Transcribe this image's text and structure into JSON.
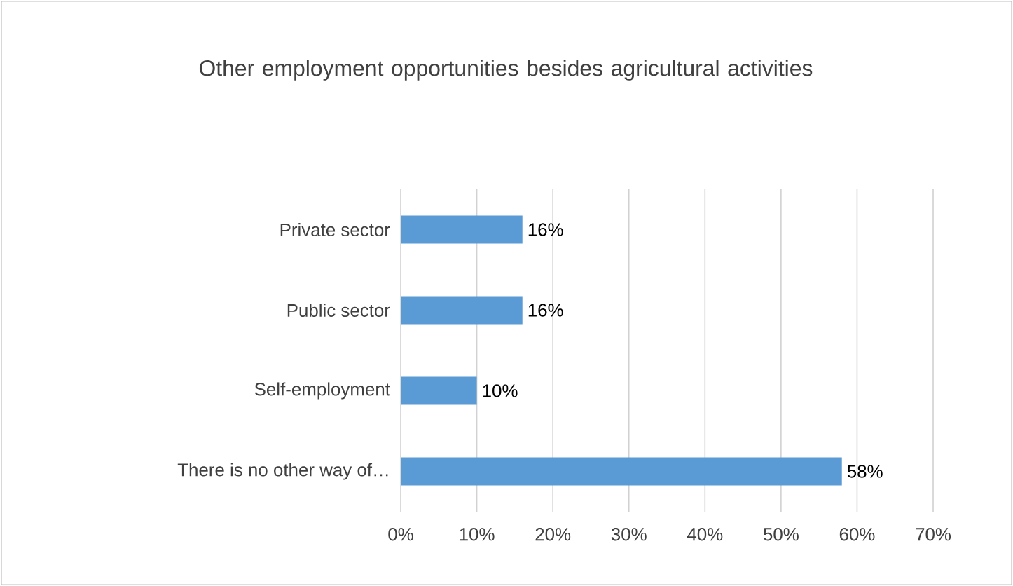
{
  "chart_data": {
    "type": "bar",
    "orientation": "horizontal",
    "title": "Other employment opportunities besides agricultural activities",
    "categories": [
      "Private sector",
      "Public sector",
      "Self-employment",
      "There is no other way of…"
    ],
    "values": [
      16,
      16,
      10,
      58
    ],
    "value_labels": [
      "16%",
      "16%",
      "10%",
      "58%"
    ],
    "color": "#5b9bd5",
    "xlim": [
      0,
      70
    ],
    "xticks": [
      {
        "value": 0,
        "label": "0%"
      },
      {
        "value": 10,
        "label": "10%"
      },
      {
        "value": 20,
        "label": "20%"
      },
      {
        "value": 30,
        "label": "30%"
      },
      {
        "value": 40,
        "label": "40%"
      },
      {
        "value": 50,
        "label": "50%"
      },
      {
        "value": 60,
        "label": "60%"
      },
      {
        "value": 70,
        "label": "70%"
      }
    ],
    "grid": "x"
  }
}
